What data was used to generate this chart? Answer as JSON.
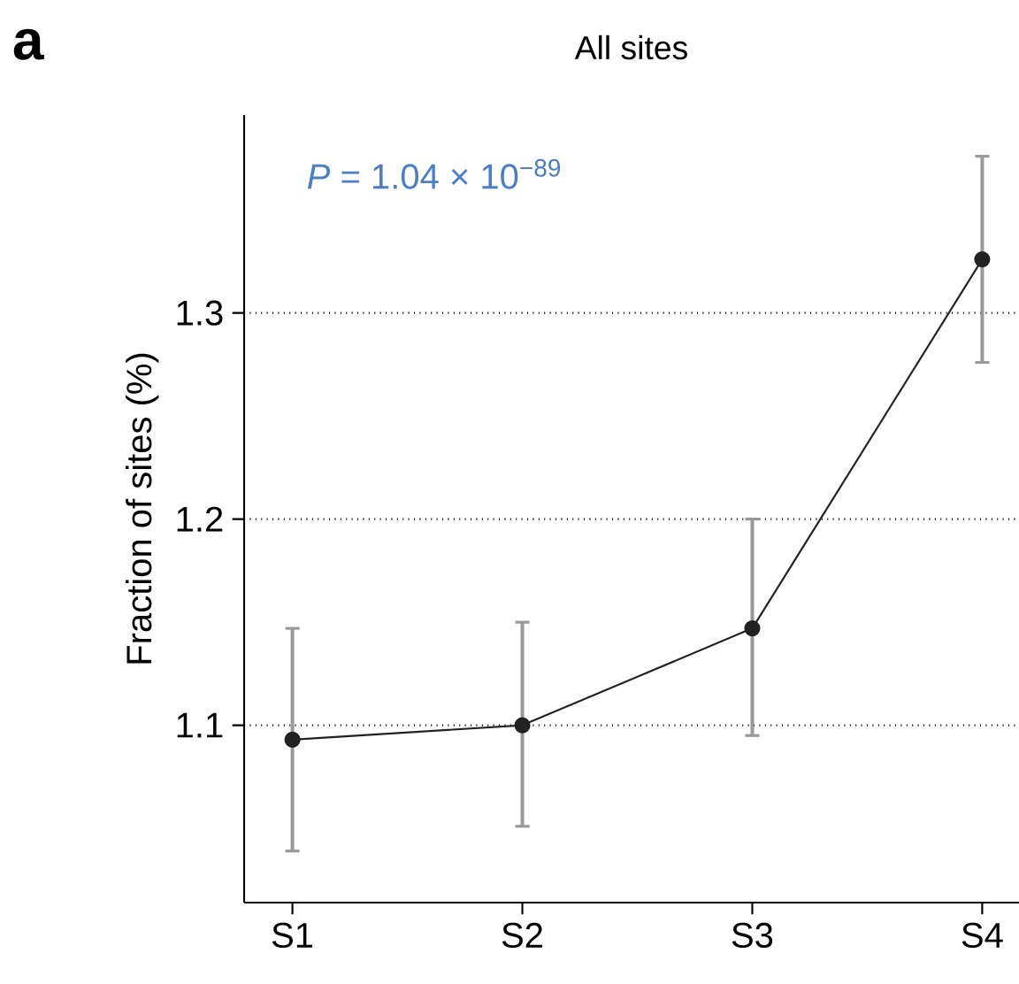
{
  "chart_data": {
    "type": "line",
    "title": "All sites",
    "ylabel": "Fraction of sites (%)",
    "annotations": [
      "a",
      "*P* = 1.04 × 10$^{−89}$"
    ],
    "categories": [
      "S1",
      "S2",
      "S3",
      "S4"
    ],
    "series": [
      {
        "color": "#222222",
        "values": [
          1.093,
          1.1,
          1.147,
          1.326
        ],
        "errors": [
          [
            1.039,
            1.147
          ],
          [
            1.051,
            1.15
          ],
          [
            1.095,
            1.2
          ],
          [
            1.276,
            1.376
          ]
        ]
      }
    ],
    "ylim": [
      1.014,
      1.396
    ],
    "yticks": [
      1.1,
      1.2,
      1.3
    ],
    "grid": "y",
    "marker": "circle",
    "line_style": "solid"
  }
}
